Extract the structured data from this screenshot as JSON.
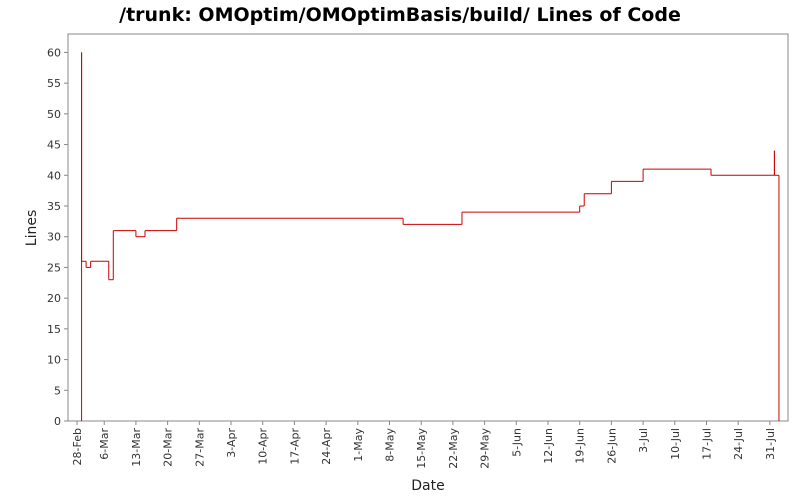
{
  "chart_data": {
    "type": "step",
    "title": "/trunk: OMOptim/OMOptimBasis/build/ Lines of Code",
    "x_label": "Date",
    "y_label": "Lines",
    "series": [
      {
        "name": "Lines",
        "color": "#cc0000",
        "x": [
          "1-Mar",
          "1-Mar",
          "1-Mar",
          "2-Mar",
          "3-Mar",
          "7-Mar",
          "8-Mar",
          "13-Mar",
          "15-Mar",
          "22-Mar",
          "11-May",
          "24-May",
          "19-Jun",
          "20-Jun",
          "26-Jun",
          "3-Jul",
          "18-Jul",
          "1-Aug",
          "1-Aug",
          "2-Aug"
        ],
        "values": [
          0,
          60,
          26,
          25,
          26,
          23,
          31,
          30,
          31,
          33,
          32,
          34,
          35,
          37,
          39,
          41,
          40,
          44,
          40,
          0
        ]
      }
    ],
    "xlim": [
      "26-Feb",
      "4-Aug"
    ],
    "xticks": [
      "28-Feb",
      "6-Mar",
      "13-Mar",
      "20-Mar",
      "27-Mar",
      "3-Apr",
      "10-Apr",
      "17-Apr",
      "24-Apr",
      "1-May",
      "8-May",
      "15-May",
      "22-May",
      "29-May",
      "5-Jun",
      "12-Jun",
      "19-Jun",
      "26-Jun",
      "3-Jul",
      "10-Jul",
      "17-Jul",
      "24-Jul",
      "31-Jul"
    ],
    "ylim": [
      0,
      63
    ],
    "yticks": [
      0,
      5,
      10,
      15,
      20,
      25,
      30,
      35,
      40,
      45,
      50,
      55,
      60
    ],
    "grid": false
  }
}
